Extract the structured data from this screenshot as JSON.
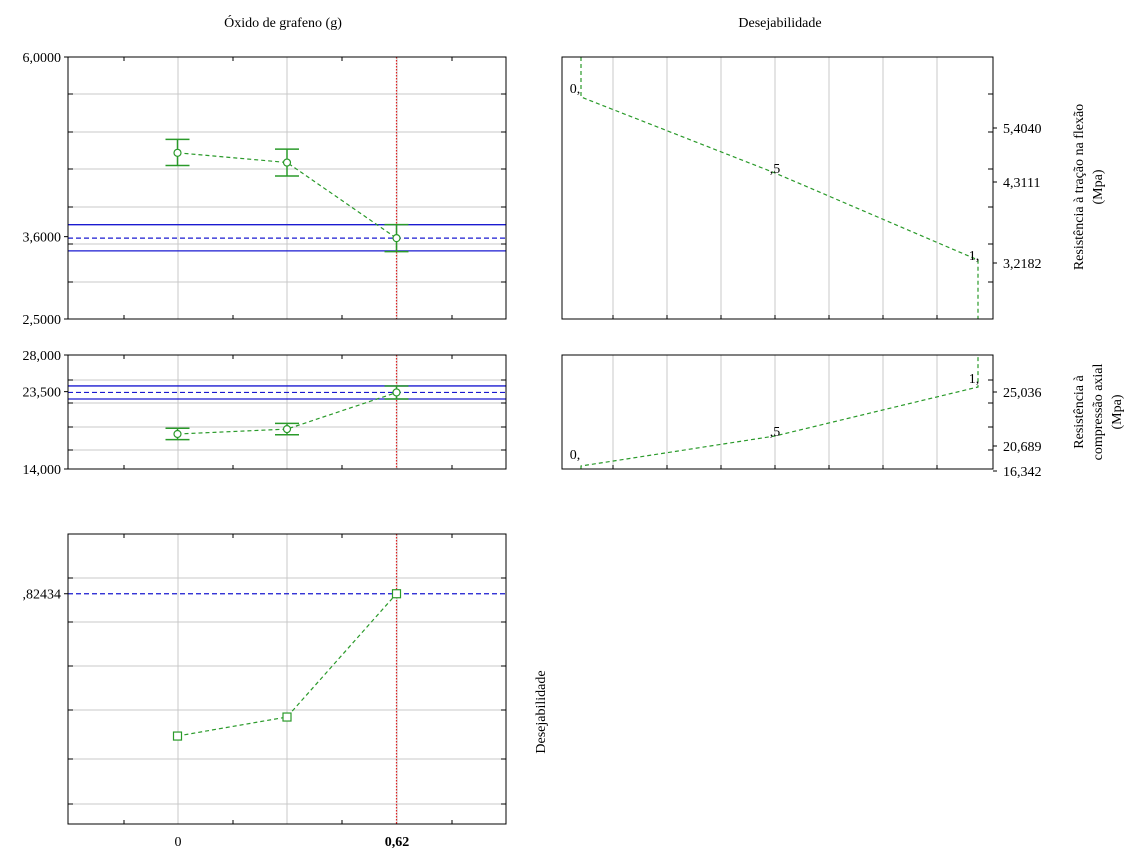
{
  "headers": {
    "factor": "Óxido de grafeno (g)",
    "desirability": "Desejabilidade"
  },
  "x_axis": {
    "tick_labels": [
      "0",
      "0,62"
    ],
    "current_label": "0,62",
    "current_value": 0.62,
    "xlim": [
      -0.31,
      0.93
    ]
  },
  "colors": {
    "series": "#2a9a2a",
    "prediction": "#1a1ad0",
    "current": "#e02020",
    "grid": "#c8c8c8"
  },
  "chart_data": [
    {
      "type": "line",
      "name": "Resistência à tração na flexão",
      "ylabel": "Resistência à tração na flexão (Mpa)",
      "ylabel_lines": [
        "Resistência à tração na flexão",
        "(Mpa)"
      ],
      "ylim": [
        2.5,
        6.0
      ],
      "y_tick_labels": [
        "6,0000",
        "3,6000",
        "2,5000"
      ],
      "y_tick_values": [
        6.0,
        3.6,
        2.5
      ],
      "x": [
        0,
        0.31,
        0.62
      ],
      "y": [
        4.72,
        4.59,
        3.58
      ],
      "err_lower": [
        4.55,
        4.41,
        3.4
      ],
      "err_upper": [
        4.9,
        4.77,
        3.76
      ],
      "predicted": 3.58,
      "ci_lower": 3.41,
      "ci_upper": 3.76,
      "desirability": {
        "values": [
          3.2182,
          4.3111,
          5.404
        ],
        "labels": [
          "1,",
          ",5",
          "0,"
        ],
        "y_tick_labels": [
          "5,4040",
          "4,3111",
          "3,2182"
        ],
        "y_tick_values": [
          5.404,
          4.3111,
          3.2182
        ]
      }
    },
    {
      "type": "line",
      "name": "Resistência à compressão axial",
      "ylabel": "Resistência à compressão axial (Mpa)",
      "ylabel_lines": [
        "Resistência à",
        "compressão axial",
        "(Mpa)"
      ],
      "ylim": [
        14.0,
        28.0
      ],
      "y_tick_labels": [
        "28,000",
        "23,500",
        "14,000"
      ],
      "y_tick_values": [
        28.0,
        23.5,
        14.0
      ],
      "x": [
        0,
        0.31,
        0.62
      ],
      "y": [
        18.3,
        18.9,
        23.4
      ],
      "err_lower": [
        17.6,
        18.2,
        22.6
      ],
      "err_upper": [
        19.0,
        19.6,
        24.2
      ],
      "predicted": 23.4,
      "ci_lower": 22.6,
      "ci_upper": 24.2,
      "desirability": {
        "values": [
          16.342,
          20.689,
          25.036
        ],
        "labels": [
          "0,",
          ",5",
          "1,"
        ],
        "y_tick_labels": [
          "25,036",
          "20,689",
          "16,342"
        ],
        "y_tick_values": [
          25.036,
          20.689,
          16.342
        ]
      }
    },
    {
      "type": "line",
      "name": "Desejabilidade",
      "ylabel": "Desejabilidade",
      "ylim": [
        0.34,
        0.95
      ],
      "y_tick_labels": [
        ",82434"
      ],
      "y_tick_values": [
        0.82434
      ],
      "x": [
        0,
        0.31,
        0.62
      ],
      "y": [
        0.525,
        0.565,
        0.82434
      ],
      "predicted": 0.82434
    }
  ]
}
